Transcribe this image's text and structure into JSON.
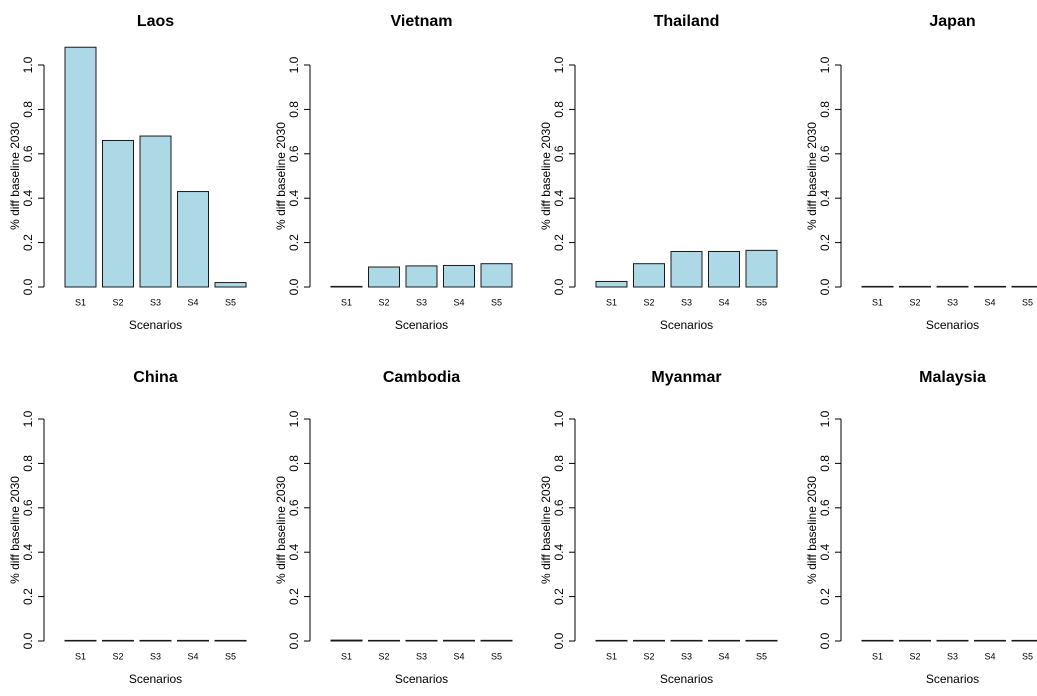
{
  "figure": {
    "background": "#ffffff",
    "bar_fill": "#add8e6",
    "bar_stroke": "#1a1a1a"
  },
  "chart_data": [
    {
      "type": "bar",
      "title": "Laos",
      "xlabel": "Scenarios",
      "ylabel": "% diff baseline 2030",
      "categories": [
        "S1",
        "S2",
        "S3",
        "S4",
        "S5"
      ],
      "values": [
        1.08,
        0.66,
        0.68,
        0.43,
        0.02
      ],
      "ylim": [
        0,
        1.0
      ],
      "yticks": [
        "0.0",
        "0.2",
        "0.4",
        "0.6",
        "0.8",
        "1.0"
      ],
      "grid": false
    },
    {
      "type": "bar",
      "title": "Vietnam",
      "xlabel": "Scenarios",
      "ylabel": "% diff baseline 2030",
      "categories": [
        "S1",
        "S2",
        "S3",
        "S4",
        "S5"
      ],
      "values": [
        0.0,
        0.09,
        0.095,
        0.097,
        0.105
      ],
      "ylim": [
        0,
        1.0
      ],
      "yticks": [
        "0.0",
        "0.2",
        "0.4",
        "0.6",
        "0.8",
        "1.0"
      ],
      "grid": false
    },
    {
      "type": "bar",
      "title": "Thailand",
      "xlabel": "Scenarios",
      "ylabel": "% diff baseline 2030",
      "categories": [
        "S1",
        "S2",
        "S3",
        "S4",
        "S5"
      ],
      "values": [
        0.025,
        0.105,
        0.16,
        0.16,
        0.165
      ],
      "ylim": [
        0,
        1.0
      ],
      "yticks": [
        "0.0",
        "0.2",
        "0.4",
        "0.6",
        "0.8",
        "1.0"
      ],
      "grid": false
    },
    {
      "type": "bar",
      "title": "Japan",
      "xlabel": "Scenarios",
      "ylabel": "% diff baseline 2030",
      "categories": [
        "S1",
        "S2",
        "S3",
        "S4",
        "S5"
      ],
      "values": [
        0.0,
        0.0,
        0.0,
        0.0,
        0.0
      ],
      "ylim": [
        0,
        1.0
      ],
      "yticks": [
        "0.0",
        "0.2",
        "0.4",
        "0.6",
        "0.8",
        "1.0"
      ],
      "grid": false
    },
    {
      "type": "bar",
      "title": "China",
      "xlabel": "Scenarios",
      "ylabel": "% diff baseline 2030",
      "categories": [
        "S1",
        "S2",
        "S3",
        "S4",
        "S5"
      ],
      "values": [
        0.0,
        0.0,
        0.0,
        0.0,
        0.0
      ],
      "ylim": [
        0,
        1.0
      ],
      "yticks": [
        "0.0",
        "0.2",
        "0.4",
        "0.6",
        "0.8",
        "1.0"
      ],
      "grid": false
    },
    {
      "type": "bar",
      "title": "Cambodia",
      "xlabel": "Scenarios",
      "ylabel": "% diff baseline 2030",
      "categories": [
        "S1",
        "S2",
        "S3",
        "S4",
        "S5"
      ],
      "values": [
        0.004,
        0.002,
        0.002,
        0.003,
        0.003
      ],
      "ylim": [
        0,
        1.0
      ],
      "yticks": [
        "0.0",
        "0.2",
        "0.4",
        "0.6",
        "0.8",
        "1.0"
      ],
      "grid": false
    },
    {
      "type": "bar",
      "title": "Myanmar",
      "xlabel": "Scenarios",
      "ylabel": "% diff baseline 2030",
      "categories": [
        "S1",
        "S2",
        "S3",
        "S4",
        "S5"
      ],
      "values": [
        0.0,
        0.0,
        0.0,
        0.0,
        0.0
      ],
      "ylim": [
        0,
        1.0
      ],
      "yticks": [
        "0.0",
        "0.2",
        "0.4",
        "0.6",
        "0.8",
        "1.0"
      ],
      "grid": false
    },
    {
      "type": "bar",
      "title": "Malaysia",
      "xlabel": "Scenarios",
      "ylabel": "% diff baseline 2030",
      "categories": [
        "S1",
        "S2",
        "S3",
        "S4",
        "S5"
      ],
      "values": [
        0.0,
        0.0,
        0.0,
        0.0,
        0.0
      ],
      "ylim": [
        0,
        1.0
      ],
      "yticks": [
        "0.0",
        "0.2",
        "0.4",
        "0.6",
        "0.8",
        "1.0"
      ],
      "grid": false
    }
  ]
}
